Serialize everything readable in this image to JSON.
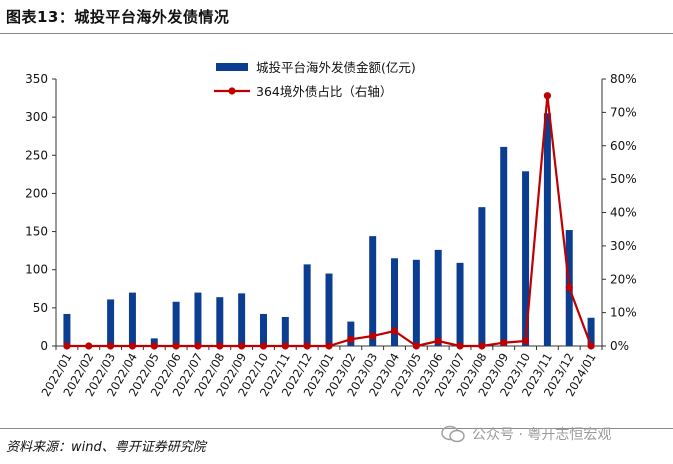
{
  "header": {
    "title": "图表13：城投平台海外发债情况"
  },
  "footer": {
    "source": "资料来源：wind、粤开证券研究院",
    "watermark": "公众号 · 粤开志恒宏观"
  },
  "colors": {
    "bar": "#0b3d91",
    "line": "#c00000",
    "axis": "#333333"
  },
  "chart_data": {
    "type": "bar",
    "categories": [
      "2022/01",
      "2022/02",
      "2022/03",
      "2022/04",
      "2022/05",
      "2022/06",
      "2022/07",
      "2022/08",
      "2022/09",
      "2022/10",
      "2022/11",
      "2022/12",
      "2023/01",
      "2023/02",
      "2023/03",
      "2023/04",
      "2023/05",
      "2023/06",
      "2023/07",
      "2023/08",
      "2023/09",
      "2023/10",
      "2023/11",
      "2023/12",
      "2024/01"
    ],
    "series": [
      {
        "name": "城投平台海外发债金额(亿元)",
        "type": "bar",
        "axis": "left",
        "values": [
          42,
          0,
          61,
          70,
          10,
          58,
          70,
          64,
          69,
          42,
          38,
          107,
          95,
          32,
          144,
          115,
          113,
          126,
          109,
          182,
          261,
          229,
          305,
          152,
          37
        ]
      },
      {
        "name": "364境外债占比（右轴）",
        "type": "line",
        "axis": "right",
        "values": [
          0,
          0,
          0,
          0,
          0,
          0,
          0,
          0,
          0,
          0,
          0,
          0,
          0,
          2,
          3,
          4.5,
          0,
          1.5,
          0,
          0,
          1,
          1.5,
          75,
          17.5,
          0
        ]
      }
    ],
    "ylim": [
      0,
      350
    ],
    "yticks": [
      "0",
      "50",
      "100",
      "150",
      "200",
      "250",
      "300",
      "350"
    ],
    "y2lim": [
      0,
      80
    ],
    "y2ticks": [
      "0%",
      "10%",
      "20%",
      "30%",
      "40%",
      "50%",
      "60%",
      "70%",
      "80%"
    ],
    "legend": "top-center",
    "grid": false
  }
}
